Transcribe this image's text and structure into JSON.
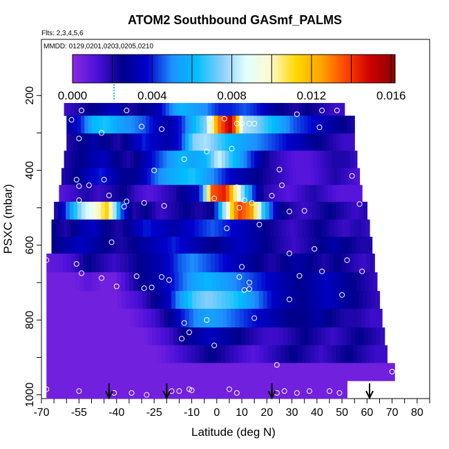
{
  "chart_data": {
    "type": "heatmap",
    "title": "ATOM2 Southbound GASmf_PALMS",
    "flights_label": "Flts: 2,3,4,5,6",
    "mmdd_label": "MMDD: 0129,0201,0203,0205,0210",
    "xlabel": "Latitude (deg N)",
    "ylabel": "PSXC (mbar)",
    "xlim": [
      -70,
      85
    ],
    "ylim": [
      1010,
      50
    ],
    "x_ticks": [
      "-70",
      "-55",
      "-40",
      "-25",
      "-10",
      "0",
      "10",
      "20",
      "30",
      "40",
      "50",
      "60",
      "70",
      "80"
    ],
    "x_tick_values": [
      -70,
      -55,
      -40,
      -25,
      -10,
      0,
      10,
      20,
      30,
      40,
      50,
      60,
      70,
      80
    ],
    "x_minor_ticks": [
      -65,
      -60,
      -50,
      -45,
      -35,
      -30,
      -20,
      -15,
      -5,
      5,
      15,
      25,
      35,
      45,
      55,
      65,
      75,
      85
    ],
    "y_ticks": [
      "200",
      "400",
      "600",
      "800",
      "1000"
    ],
    "y_tick_values": [
      200,
      400,
      600,
      800,
      1000
    ],
    "y_minor_ticks": [
      300,
      500,
      700,
      900
    ],
    "colorbar": {
      "range": [
        0,
        0.0162
      ],
      "ticks": [
        "0.000",
        "0.004",
        "0.008",
        "0.012",
        "0.016"
      ],
      "tick_values": [
        0,
        0.004,
        0.008,
        0.012,
        0.016
      ],
      "colors": [
        "#8a2be2",
        "#4b10d9",
        "#00008b",
        "#0000cd",
        "#1e90ff",
        "#00bfff",
        "#87cefa",
        "#e0ffff",
        "#fffacd",
        "#ffd700",
        "#ffa500",
        "#ff4500",
        "#cc0000",
        "#8b0000"
      ]
    },
    "rows": [
      {
        "p": 230,
        "x0": -61,
        "x1": 51,
        "v": [
          0.0015,
          0.002,
          0.0025,
          0.003,
          0.0035,
          0.002,
          0.0025,
          0.003,
          0.0045,
          0.006,
          0.0055,
          0.005,
          0.004,
          0.004,
          0.0045,
          0.004,
          0.003,
          0.0025,
          0.002,
          0.0025,
          0.002,
          0.0015,
          0.0015
        ]
      },
      {
        "p": 278,
        "x0": -60,
        "x1": 55,
        "v": [
          0.003,
          0.004,
          0.006,
          0.0065,
          0.0055,
          0.005,
          0.0045,
          0.0035,
          0.003,
          0.004,
          0.006,
          0.0075,
          0.013,
          0.0155,
          0.008,
          0.0075,
          0.0065,
          0.0055,
          0.0045,
          0.004,
          0.0035,
          0.003,
          0.0025,
          0.002
        ]
      },
      {
        "p": 325,
        "x0": -60,
        "x1": 55,
        "v": [
          0.002,
          0.0025,
          0.003,
          0.0025,
          0.002,
          0.003,
          0.004,
          0.0035,
          0.003,
          0.004,
          0.0075,
          0.008,
          0.007,
          0.006,
          0.0055,
          0.005,
          0.0045,
          0.004,
          0.0035,
          0.003,
          0.0025,
          0.002,
          0.0015,
          0.0015
        ]
      },
      {
        "p": 370,
        "x0": -61,
        "x1": 56,
        "v": [
          0.002,
          0.0025,
          0.003,
          0.0035,
          0.0025,
          0.002,
          0.003,
          0.004,
          0.005,
          0.006,
          0.0055,
          0.006,
          0.0085,
          0.0065,
          0.005,
          0.0035,
          0.002,
          0.0015,
          0.001,
          0.001,
          0.0015,
          0.002,
          0.002,
          0.0015
        ]
      },
      {
        "p": 418,
        "x0": -62,
        "x1": 57,
        "v": [
          0.002,
          0.0025,
          0.0035,
          0.004,
          0.003,
          0.0025,
          0.003,
          0.0045,
          0.0055,
          0.006,
          0.0065,
          0.0055,
          0.0045,
          0.0035,
          0.003,
          0.0025,
          0.002,
          0.0015,
          0.001,
          0.001,
          0.0015,
          0.002,
          0.0015,
          0.001
        ]
      },
      {
        "p": 460,
        "x0": -63,
        "x1": 58,
        "v": [
          0.001,
          0.0015,
          0.002,
          0.0015,
          0.002,
          0.0025,
          0.0015,
          0.001,
          0.0015,
          0.002,
          0.003,
          0.0035,
          0.0135,
          0.0145,
          0.0095,
          0.005,
          0.002,
          0.0015,
          0.001,
          0.0015,
          0.002,
          0.0015,
          0.001,
          0.001,
          0.001
        ]
      },
      {
        "p": 508,
        "x0": -65,
        "x1": 60,
        "v": [
          0.002,
          0.005,
          0.008,
          0.0095,
          0.0115,
          0.0045,
          0.002,
          0.0025,
          0.0015,
          0.002,
          0.0025,
          0.002,
          0.0025,
          0.0085,
          0.014,
          0.0125,
          0.006,
          0.003,
          0.002,
          0.0015,
          0.002,
          0.0025,
          0.002,
          0.0015,
          0.002
        ]
      },
      {
        "p": 555,
        "x0": -66,
        "x1": 61,
        "v": [
          0.0025,
          0.002,
          0.003,
          0.0035,
          0.0025,
          0.002,
          0.003,
          0.004,
          0.0035,
          0.003,
          0.0035,
          0.004,
          0.0045,
          0.004,
          0.0035,
          0.003,
          0.0025,
          0.002,
          0.0015,
          0.002,
          0.0025,
          0.002,
          0.0015,
          0.002,
          0.0015
        ]
      },
      {
        "p": 600,
        "x0": -66,
        "x1": 62,
        "v": [
          0.0025,
          0.003,
          0.0035,
          0.003,
          0.0025,
          0.002,
          0.0025,
          0.003,
          0.0035,
          0.004,
          0.0035,
          0.003,
          0.0025,
          0.003,
          0.0035,
          0.003,
          0.0025,
          0.002,
          0.0015,
          0.002,
          0.0025,
          0.003,
          0.0025,
          0.002,
          0.002
        ]
      },
      {
        "p": 645,
        "x0": -68,
        "x1": 63,
        "v": [
          0.0008,
          0.001,
          0.0015,
          0.0025,
          0.002,
          0.0015,
          0.002,
          0.0025,
          0.003,
          0.0035,
          0.0045,
          0.005,
          0.0045,
          0.004,
          0.0035,
          0.003,
          0.0025,
          0.002,
          0.0025,
          0.003,
          0.0025,
          0.002,
          0.0025,
          0.002,
          0.0015,
          0.002
        ]
      },
      {
        "p": 700,
        "x0": -68,
        "x1": 64,
        "v": [
          0.0005,
          0.0005,
          0.0005,
          0.001,
          0.0005,
          0.0005,
          0.0015,
          0.0025,
          0.003,
          0.0035,
          0.0045,
          0.0055,
          0.006,
          0.0055,
          0.005,
          0.0045,
          0.004,
          0.0035,
          0.003,
          0.0025,
          0.003,
          0.0035,
          0.003,
          0.0025,
          0.002,
          0.0015
        ]
      },
      {
        "p": 745,
        "x0": -68,
        "x1": 65,
        "v": [
          0.0005,
          0.0005,
          0.0005,
          0.0005,
          0.0005,
          0.0005,
          0.001,
          0.0015,
          0.0025,
          0.0035,
          0.0055,
          0.007,
          0.0075,
          0.007,
          0.0065,
          0.0055,
          0.0045,
          0.0035,
          0.003,
          0.0025,
          0.003,
          0.0035,
          0.003,
          0.0025,
          0.002,
          0.0015
        ]
      },
      {
        "p": 795,
        "x0": -68,
        "x1": 66,
        "v": [
          0.0005,
          0.0005,
          0.0005,
          0.0005,
          0.0005,
          0.0005,
          0.0005,
          0.001,
          0.0015,
          0.0025,
          0.004,
          0.005,
          0.0055,
          0.005,
          0.0045,
          0.004,
          0.0035,
          0.003,
          0.0025,
          0.0025,
          0.003,
          0.0025,
          0.002,
          0.002,
          0.0015,
          0.0015
        ]
      },
      {
        "p": 845,
        "x0": -68,
        "x1": 67,
        "v": [
          0.0005,
          0.0005,
          0.0005,
          0.0005,
          0.0005,
          0.0005,
          0.0005,
          0.0005,
          0.001,
          0.0015,
          0.0025,
          0.003,
          0.0035,
          0.003,
          0.0025,
          0.002,
          0.0015,
          0.0015,
          0.002,
          0.0025,
          0.002,
          0.0015,
          0.002,
          0.0025,
          0.002,
          0.0015
        ]
      },
      {
        "p": 890,
        "x0": -68,
        "x1": 68,
        "v": [
          0.0005,
          0.0005,
          0.0005,
          0.0005,
          0.0005,
          0.0005,
          0.0005,
          0.0005,
          0.0005,
          0.001,
          0.0015,
          0.002,
          0.0025,
          0.002,
          0.0015,
          0.001,
          0.0015,
          0.002,
          0.0025,
          0.002,
          0.0015,
          0.002,
          0.0025,
          0.002,
          0.0015,
          0.0015
        ]
      },
      {
        "p": 940,
        "x0": -68,
        "x1": 71,
        "v": [
          0.0005,
          0.0005,
          0.0005,
          0.0005,
          0.0005,
          0.0005,
          0.0005,
          0.0005,
          0.0005,
          0.0005,
          0.0005,
          0.0005,
          0.0005,
          0.0005,
          0.0005,
          0.0005,
          0.0005,
          0.0005,
          0.0005,
          0.0005,
          0.0005,
          0.0005,
          0.0005,
          0.0005,
          0.0005,
          0.0005
        ]
      },
      {
        "p": 985,
        "x0": -68,
        "x1": 52,
        "v": [
          0.0005,
          0.0005,
          0.0005,
          0.0005,
          0.0005,
          0.0005,
          0.0005,
          0.0005,
          0.0005,
          0.0005,
          0.0005,
          0.0005,
          0.0005,
          0.0005,
          0.0005,
          0.0005,
          0.0005,
          0.0005,
          0.0005,
          0.0005,
          0.0005,
          0.0005,
          0.0005
        ]
      }
    ],
    "points": [
      {
        "x": -54,
        "y": 240
      },
      {
        "x": -36,
        "y": 240
      },
      {
        "x": 42,
        "y": 240
      },
      {
        "x": -58,
        "y": 265
      },
      {
        "x": -3,
        "y": 262
      },
      {
        "x": 3,
        "y": 262
      },
      {
        "x": 32,
        "y": 250
      },
      {
        "x": 48,
        "y": 240
      },
      {
        "x": -22,
        "y": 290
      },
      {
        "x": -30,
        "y": 283
      },
      {
        "x": 8,
        "y": 275
      },
      {
        "x": 10,
        "y": 275
      },
      {
        "x": 13,
        "y": 275
      },
      {
        "x": 15,
        "y": 275
      },
      {
        "x": 41,
        "y": 285
      },
      {
        "x": 57,
        "y": 280
      },
      {
        "x": -46,
        "y": 300
      },
      {
        "x": -55,
        "y": 315
      },
      {
        "x": -4,
        "y": 350
      },
      {
        "x": 6,
        "y": 342
      },
      {
        "x": -13,
        "y": 370
      },
      {
        "x": -51,
        "y": 440
      },
      {
        "x": -56,
        "y": 425
      },
      {
        "x": -55,
        "y": 442
      },
      {
        "x": -45,
        "y": 425
      },
      {
        "x": -25,
        "y": 400
      },
      {
        "x": 25,
        "y": 398
      },
      {
        "x": 54,
        "y": 415
      },
      {
        "x": 26,
        "y": 440
      },
      {
        "x": 8,
        "y": 445
      },
      {
        "x": -55,
        "y": 480
      },
      {
        "x": -66,
        "y": 480
      },
      {
        "x": -43,
        "y": 467
      },
      {
        "x": -36,
        "y": 483
      },
      {
        "x": -29,
        "y": 487
      },
      {
        "x": -21,
        "y": 495
      },
      {
        "x": -1,
        "y": 475
      },
      {
        "x": 11,
        "y": 480
      },
      {
        "x": 14,
        "y": 487
      },
      {
        "x": 22,
        "y": 468
      },
      {
        "x": 29,
        "y": 510
      },
      {
        "x": 35,
        "y": 508
      },
      {
        "x": 57,
        "y": 490
      },
      {
        "x": 9,
        "y": 500
      },
      {
        "x": -37,
        "y": 497
      },
      {
        "x": 17,
        "y": 545
      },
      {
        "x": 4,
        "y": 555
      },
      {
        "x": -42,
        "y": 592
      },
      {
        "x": 29,
        "y": 622
      },
      {
        "x": 39,
        "y": 610
      },
      {
        "x": -68,
        "y": 640
      },
      {
        "x": -56,
        "y": 650
      },
      {
        "x": 10,
        "y": 658
      },
      {
        "x": 52,
        "y": 640
      },
      {
        "x": -54,
        "y": 675
      },
      {
        "x": -46,
        "y": 688
      },
      {
        "x": -32,
        "y": 683
      },
      {
        "x": -22,
        "y": 685
      },
      {
        "x": -19,
        "y": 693
      },
      {
        "x": 9,
        "y": 685
      },
      {
        "x": 33,
        "y": 682
      },
      {
        "x": 42,
        "y": 670
      },
      {
        "x": 13,
        "y": 700
      },
      {
        "x": 58,
        "y": 670
      },
      {
        "x": -40,
        "y": 710
      },
      {
        "x": -29,
        "y": 715
      },
      {
        "x": -26,
        "y": 713
      },
      {
        "x": 11,
        "y": 720
      },
      {
        "x": 13,
        "y": 717
      },
      {
        "x": 29,
        "y": 745
      },
      {
        "x": 50,
        "y": 733
      },
      {
        "x": 15,
        "y": 795
      },
      {
        "x": -13,
        "y": 808
      },
      {
        "x": -11,
        "y": 833
      },
      {
        "x": -14,
        "y": 850
      },
      {
        "x": -4,
        "y": 800
      },
      {
        "x": -1,
        "y": 868
      },
      {
        "x": 24,
        "y": 920
      },
      {
        "x": 70,
        "y": 938
      },
      {
        "x": -68,
        "y": 985
      },
      {
        "x": -55,
        "y": 990
      },
      {
        "x": -41,
        "y": 995
      },
      {
        "x": -34,
        "y": 995
      },
      {
        "x": -28,
        "y": 1000
      },
      {
        "x": -18,
        "y": 990
      },
      {
        "x": -15,
        "y": 990
      },
      {
        "x": -11,
        "y": 985
      },
      {
        "x": -10,
        "y": 988
      },
      {
        "x": 5,
        "y": 985
      },
      {
        "x": 8,
        "y": 995
      },
      {
        "x": 24,
        "y": 995
      },
      {
        "x": 27,
        "y": 990
      },
      {
        "x": 32,
        "y": 995
      },
      {
        "x": 37,
        "y": 990
      },
      {
        "x": 45,
        "y": 990
      },
      {
        "x": 49,
        "y": 995
      }
    ],
    "arrows": [
      -43,
      -20,
      22,
      61
    ],
    "cyan_marker": {
      "x": -41,
      "p": 170,
      "p2": 215
    }
  }
}
